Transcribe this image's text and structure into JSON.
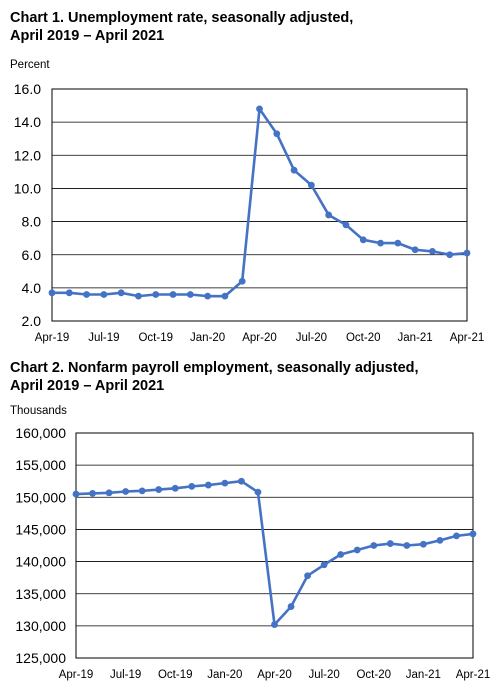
{
  "chart_data": [
    {
      "type": "line",
      "title": "Chart 1. Unemployment rate, seasonally adjusted,",
      "subtitle": "April 2019 – April 2021",
      "ylabel": "Percent",
      "xlabel": "",
      "ylim": [
        2.0,
        16.0
      ],
      "yticks": [
        "2.0",
        "4.0",
        "6.0",
        "8.0",
        "10.0",
        "12.0",
        "14.0",
        "16.0"
      ],
      "yticks_values": [
        2,
        4,
        6,
        8,
        10,
        12,
        14,
        16
      ],
      "xticks": [
        "Apr-19",
        "Jul-19",
        "Oct-19",
        "Jan-20",
        "Apr-20",
        "Jul-20",
        "Oct-20",
        "Jan-21",
        "Apr-21"
      ],
      "xticks_index": [
        0,
        3,
        6,
        9,
        12,
        15,
        18,
        21,
        24
      ],
      "grid": "horizontal",
      "line_color": "#4472C4",
      "series": [
        {
          "values": [
            3.7,
            3.7,
            3.6,
            3.6,
            3.7,
            3.5,
            3.6,
            3.6,
            3.6,
            3.5,
            3.5,
            4.4,
            14.8,
            13.3,
            11.1,
            10.2,
            8.4,
            7.8,
            6.9,
            6.7,
            6.7,
            6.3,
            6.2,
            6.0,
            6.1
          ]
        }
      ]
    },
    {
      "type": "line",
      "title": "Chart 2. Nonfarm payroll employment, seasonally adjusted,",
      "subtitle": "April 2019 – April 2021",
      "ylabel": "Thousands",
      "xlabel": "",
      "ylim": [
        125000,
        160000
      ],
      "yticks": [
        "125,000",
        "130,000",
        "135,000",
        "140,000",
        "145,000",
        "150,000",
        "155,000",
        "160,000"
      ],
      "yticks_values": [
        125000,
        130000,
        135000,
        140000,
        145000,
        150000,
        155000,
        160000
      ],
      "xticks": [
        "Apr-19",
        "Jul-19",
        "Oct-19",
        "Jan-20",
        "Apr-20",
        "Jul-20",
        "Oct-20",
        "Jan-21",
        "Apr-21"
      ],
      "xticks_index": [
        0,
        3,
        6,
        9,
        12,
        15,
        18,
        21,
        24
      ],
      "grid": "horizontal",
      "line_color": "#4472C4",
      "series": [
        {
          "values": [
            150500,
            150600,
            150700,
            150900,
            151000,
            151200,
            151400,
            151700,
            151900,
            152200,
            152500,
            150800,
            130200,
            133000,
            137800,
            139500,
            141100,
            141800,
            142500,
            142800,
            142500,
            142700,
            143300,
            144000,
            144300
          ]
        }
      ]
    }
  ]
}
